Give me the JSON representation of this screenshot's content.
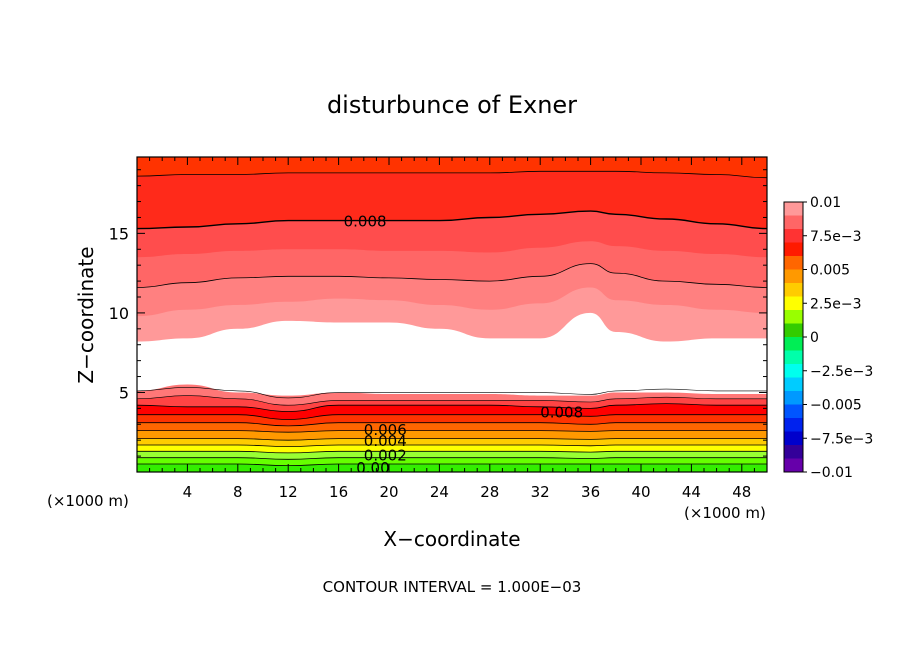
{
  "chart_data": {
    "type": "heatmap",
    "subtype": "filled-contour",
    "title": "disturbunce of Exner",
    "xlabel": "X−coordinate",
    "ylabel": "Z−coordinate",
    "x_unit_left": "(×1000 m)",
    "x_unit_right": "(×1000 m)",
    "footer": "CONTOUR INTERVAL = 1.000E−03",
    "xlim": [
      0,
      50
    ],
    "ylim": [
      0,
      19.8
    ],
    "x_ticks": [
      4,
      8,
      12,
      16,
      20,
      24,
      28,
      32,
      36,
      40,
      44,
      48
    ],
    "x_tick_labels": [
      "4",
      "8",
      "12",
      "16",
      "20",
      "24",
      "28",
      "32",
      "36",
      "40",
      "44",
      "48"
    ],
    "y_ticks": [
      5,
      10,
      15
    ],
    "y_tick_labels": [
      "5",
      "10",
      "15"
    ],
    "contour_interval": 0.001,
    "colorbar": {
      "labels": [
        "0.01",
        "7.5e−3",
        "0.005",
        "2.5e−3",
        "0",
        "−2.5e−3",
        "−0.005",
        "−7.5e−3",
        "−0.01"
      ],
      "levels_top_to_bottom": [
        0.01,
        0.009,
        0.008,
        0.007,
        0.006,
        0.005,
        0.004,
        0.003,
        0.002,
        0.001,
        0.0,
        -0.001,
        -0.002,
        -0.003,
        -0.004,
        -0.005,
        -0.006,
        -0.007,
        -0.008,
        -0.009
      ],
      "colors_top_to_bottom": [
        "#ff9999",
        "#ff6666",
        "#ff3333",
        "#ff1a00",
        "#ff6600",
        "#ff9900",
        "#ffcc00",
        "#ffff00",
        "#99ff00",
        "#33cc00",
        "#00ee55",
        "#00ffaa",
        "#00ffee",
        "#00ccff",
        "#0099ff",
        "#0055ff",
        "#0022ee",
        "#0000cc",
        "#330099",
        "#6600aa"
      ]
    },
    "bands": [
      {
        "value": 0.0005,
        "color": "#33ee00",
        "z": [
          0.5,
          0.5,
          0.5,
          0.4,
          0.5,
          0.5,
          0.5,
          0.5,
          0.5,
          0.5,
          0.5,
          0.5,
          0.5,
          0.5
        ]
      },
      {
        "value": 0.0015,
        "color": "#66ff00",
        "z": [
          0.9,
          0.9,
          0.9,
          0.8,
          0.9,
          0.9,
          0.9,
          0.9,
          0.9,
          0.85,
          0.9,
          0.9,
          0.9,
          0.9
        ]
      },
      {
        "value": 0.0025,
        "color": "#99ff33",
        "z": [
          1.3,
          1.3,
          1.3,
          1.2,
          1.3,
          1.3,
          1.3,
          1.3,
          1.3,
          1.25,
          1.3,
          1.3,
          1.3,
          1.3
        ]
      },
      {
        "value": 0.0035,
        "color": "#ffff00",
        "z": [
          1.7,
          1.7,
          1.7,
          1.6,
          1.7,
          1.7,
          1.7,
          1.7,
          1.7,
          1.65,
          1.7,
          1.7,
          1.7,
          1.7
        ]
      },
      {
        "value": 0.0045,
        "color": "#ffcc00",
        "z": [
          2.1,
          2.1,
          2.1,
          2.0,
          2.1,
          2.1,
          2.1,
          2.1,
          2.1,
          2.05,
          2.1,
          2.1,
          2.1,
          2.1
        ]
      },
      {
        "value": 0.0055,
        "color": "#ff9900",
        "z": [
          2.6,
          2.6,
          2.6,
          2.5,
          2.6,
          2.6,
          2.6,
          2.6,
          2.6,
          2.55,
          2.6,
          2.6,
          2.6,
          2.6
        ]
      },
      {
        "value": 0.0065,
        "color": "#ff6600",
        "z": [
          3.1,
          3.1,
          3.1,
          2.9,
          3.1,
          3.1,
          3.1,
          3.1,
          3.1,
          3.0,
          3.1,
          3.1,
          3.1,
          3.1
        ]
      },
      {
        "value": 0.0075,
        "color": "#ff3300",
        "z": [
          3.6,
          3.6,
          3.6,
          3.3,
          3.6,
          3.6,
          3.6,
          3.6,
          3.6,
          3.5,
          3.6,
          3.6,
          3.6,
          3.6
        ]
      },
      {
        "value": 0.0085,
        "color": "#ff0000",
        "z": [
          4.2,
          4.1,
          4.1,
          3.8,
          4.2,
          4.2,
          4.2,
          4.2,
          4.1,
          4.0,
          4.2,
          4.3,
          4.2,
          4.2
        ]
      },
      {
        "value": 0.0095,
        "color": "#ff4444",
        "z": [
          4.6,
          4.8,
          4.6,
          4.2,
          4.5,
          4.5,
          4.5,
          4.5,
          4.5,
          4.4,
          4.6,
          4.7,
          4.6,
          4.6
        ]
      },
      {
        "value": 0.0095,
        "color": "#ff7777",
        "z": [
          5.1,
          5.5,
          5.0,
          4.8,
          5.0,
          4.9,
          4.9,
          4.9,
          4.8,
          4.8,
          5.0,
          5.0,
          4.9,
          4.9
        ]
      },
      {
        "value": 0.0105,
        "color": "#ffffff",
        "z": [
          8.2,
          8.4,
          9.0,
          9.5,
          9.4,
          9.4,
          9.0,
          8.4,
          8.4,
          10.0,
          8.8,
          8.2,
          8.4,
          8.4
        ]
      },
      {
        "value": 0.0095,
        "color": "#ff9999",
        "z": [
          9.8,
          10.2,
          10.5,
          10.7,
          10.9,
          10.8,
          10.5,
          10.2,
          10.6,
          11.6,
          10.8,
          10.5,
          10.2,
          10.0
        ]
      },
      {
        "value": 0.0095,
        "color": "#ff8080",
        "z": [
          11.6,
          11.9,
          12.2,
          12.3,
          12.3,
          12.2,
          12.1,
          12.0,
          12.3,
          13.1,
          12.5,
          12.0,
          11.8,
          11.6
        ]
      },
      {
        "value": 0.0085,
        "color": "#ff6666",
        "z": [
          13.5,
          13.7,
          13.9,
          14.0,
          14.0,
          13.9,
          13.9,
          13.8,
          14.1,
          14.5,
          14.2,
          13.9,
          13.7,
          13.5
        ]
      },
      {
        "value": 0.0085,
        "color": "#ff4d4d",
        "z": [
          15.3,
          15.4,
          15.6,
          15.8,
          15.8,
          15.8,
          15.8,
          16.0,
          16.2,
          16.4,
          16.2,
          15.9,
          15.6,
          15.3
        ]
      },
      {
        "value": 0.0075,
        "color": "#ff2a1a",
        "z": [
          18.6,
          18.7,
          18.7,
          18.8,
          18.8,
          18.8,
          18.8,
          18.8,
          18.9,
          18.9,
          18.9,
          18.8,
          18.7,
          18.5
        ]
      },
      {
        "value": 0.0065,
        "color": "#ff3300",
        "z": [
          19.8,
          19.8,
          19.8,
          19.8,
          19.8,
          19.8,
          19.8,
          19.8,
          19.8,
          19.8,
          19.8,
          19.8,
          19.8,
          19.8
        ]
      }
    ],
    "band_x": [
      0,
      4,
      8,
      12,
      16,
      20,
      24,
      28,
      32,
      36,
      38,
      42,
      46,
      50
    ],
    "contour_lines_z": [
      0.45,
      0.85,
      1.25,
      1.65,
      2.05,
      2.55,
      3.05,
      3.55,
      4.1,
      11.6,
      15.3,
      18.6
    ],
    "contour_labels": [
      {
        "text": "0.008",
        "x": 16.4,
        "z": 15.8
      },
      {
        "text": "0.008",
        "x": 32.0,
        "z": 3.8
      },
      {
        "text": "0.006",
        "x": 18.0,
        "z": 2.7
      },
      {
        "text": "0.004",
        "x": 18.0,
        "z": 2.0
      },
      {
        "text": "0.002",
        "x": 18.0,
        "z": 1.1
      },
      {
        "text": "0.00",
        "x": 17.4,
        "z": 0.3
      }
    ]
  }
}
